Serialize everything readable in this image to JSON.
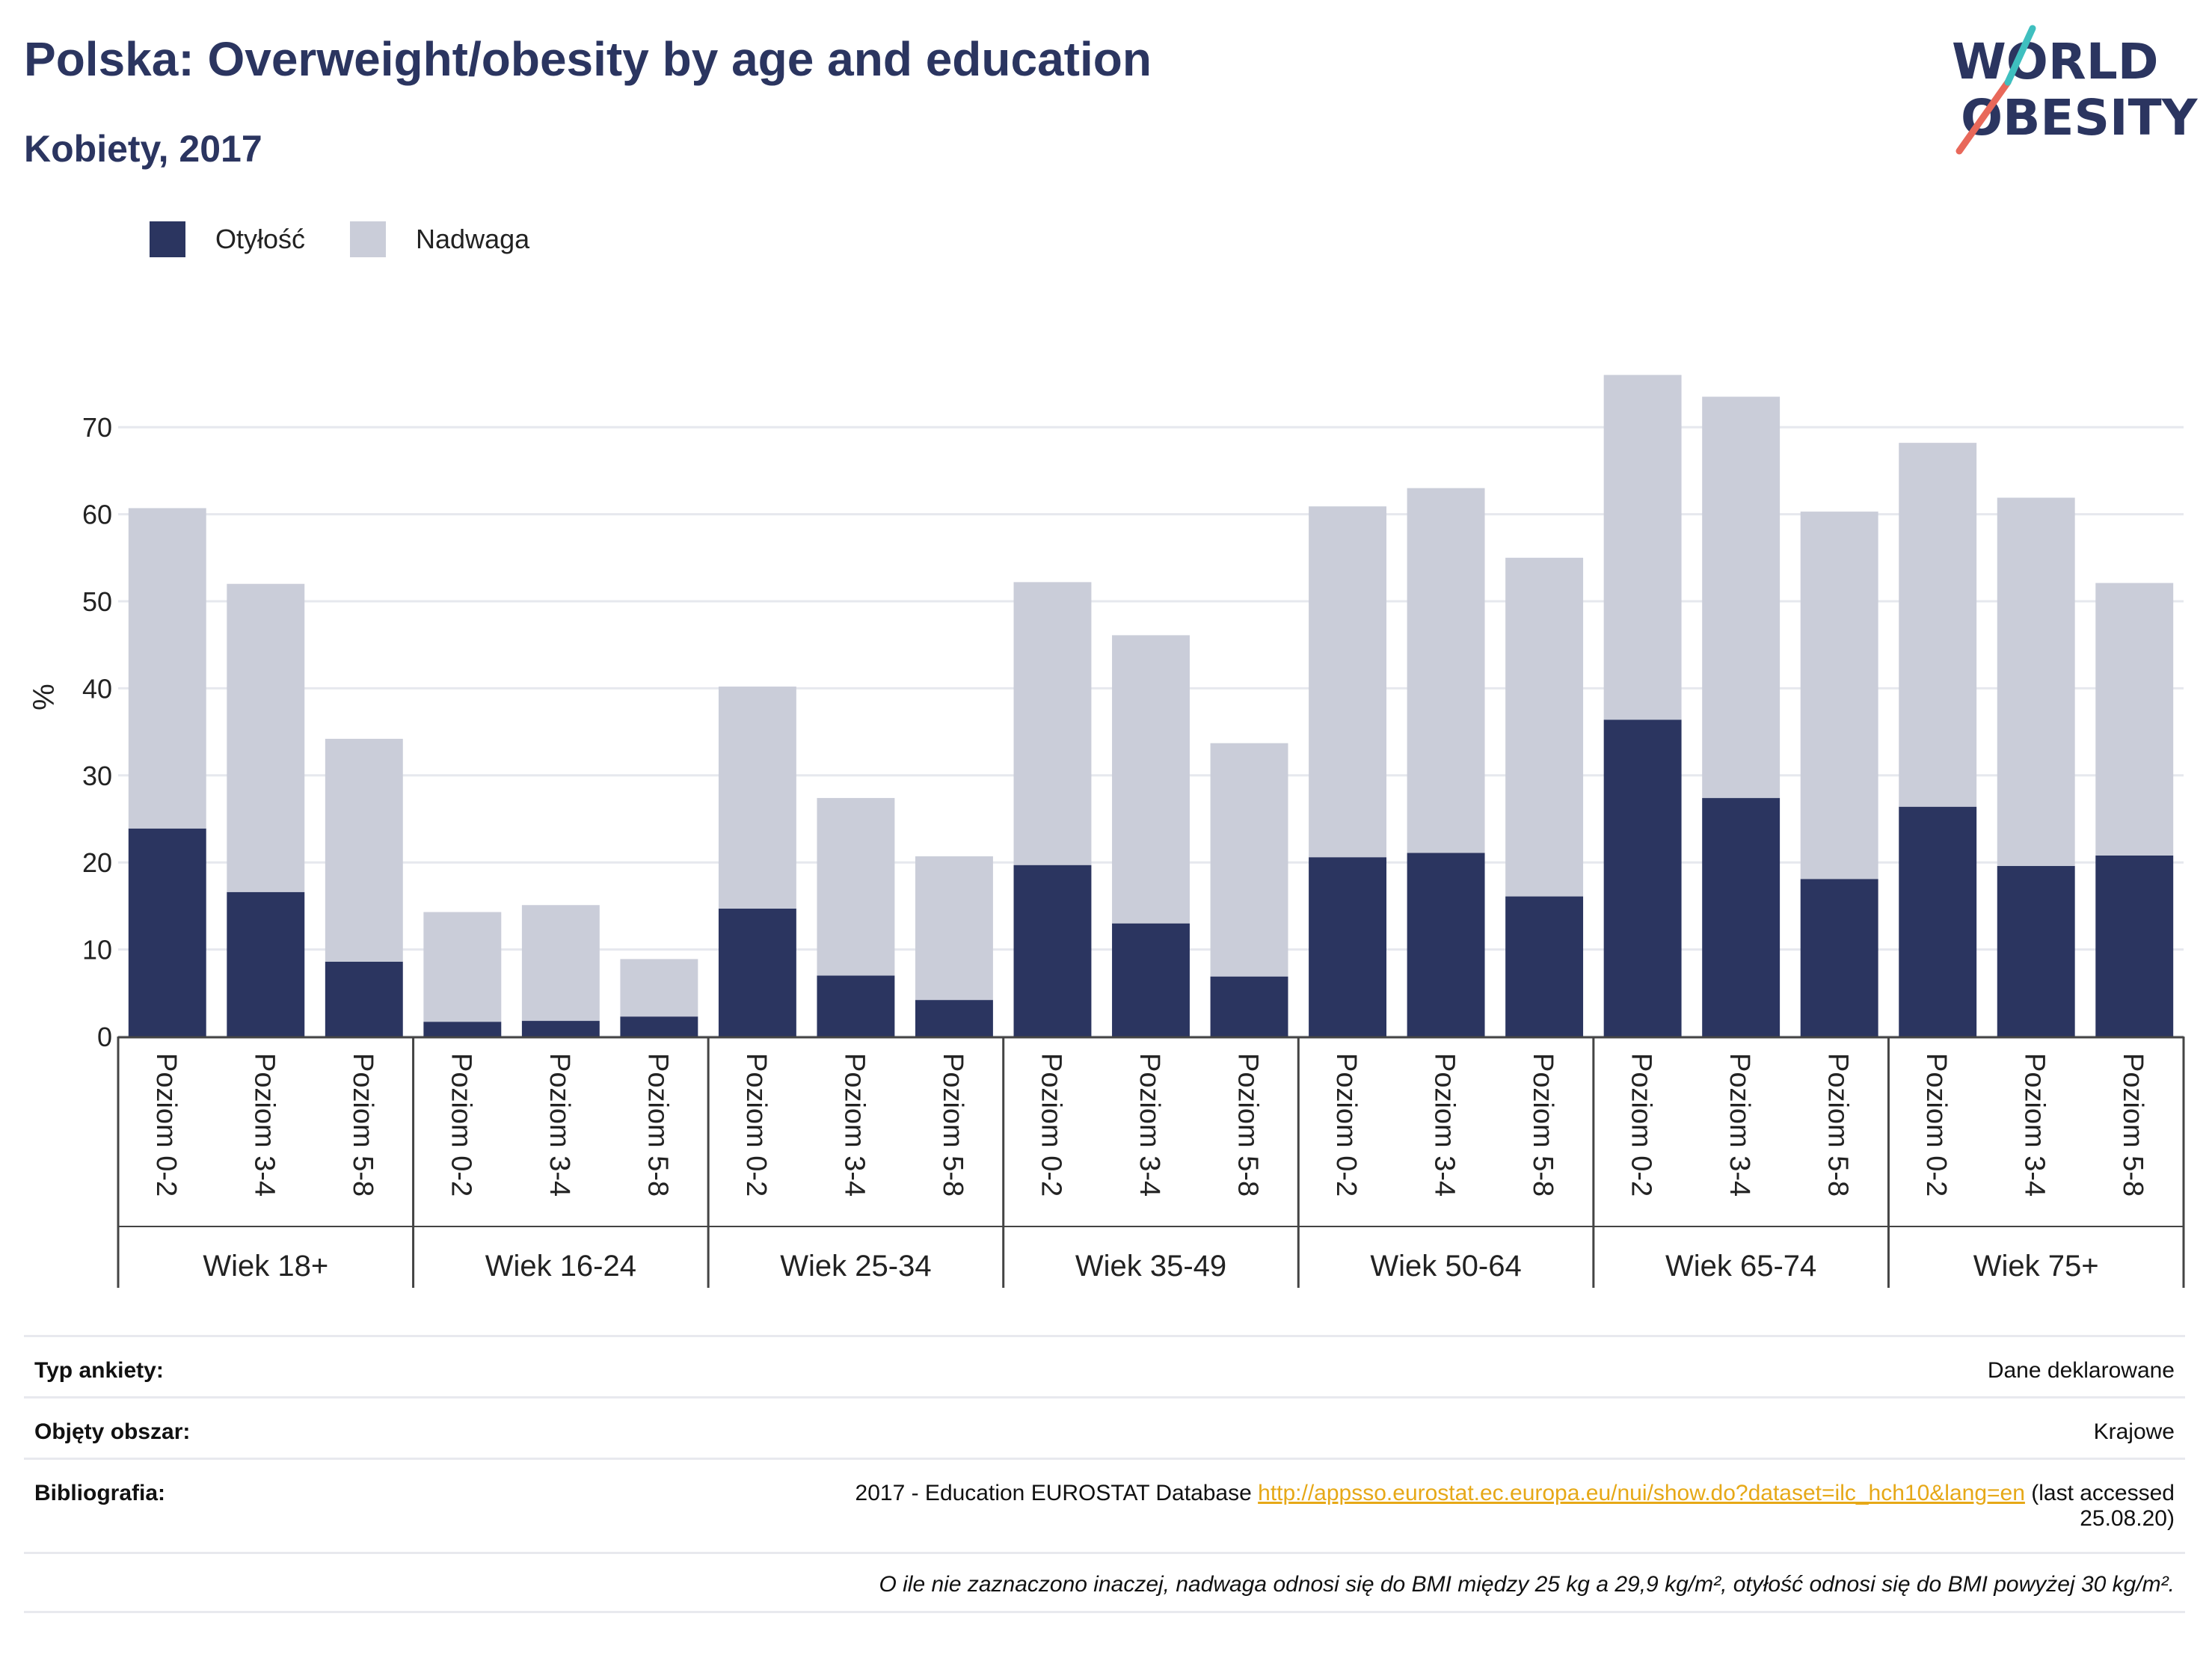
{
  "header": {
    "title": "Polska: Overweight/obesity by age and education",
    "subtitle": "Kobiety, 2017"
  },
  "logo": {
    "line1": "WORLD",
    "line2": "OBESITY"
  },
  "colors": {
    "obesity": "#2b3560",
    "overweight": "#cacdd9",
    "accent_red": "#e8685a",
    "accent_teal": "#3fbfbf"
  },
  "chart_data": {
    "type": "bar",
    "stacked": true,
    "ylabel": "%",
    "xlabel": "",
    "ylim": [
      0,
      78
    ],
    "yticks": [
      0,
      10,
      20,
      30,
      40,
      50,
      60,
      70
    ],
    "grid": true,
    "legend_position": "top-left",
    "legend": [
      "Otyłość",
      "Nadwaga"
    ],
    "groups": [
      "Wiek 18+",
      "Wiek 16-24",
      "Wiek 25-34",
      "Wiek 35-49",
      "Wiek 50-64",
      "Wiek 65-74",
      "Wiek 75+"
    ],
    "subcategories": [
      "Poziom 0-2",
      "Poziom 3-4",
      "Poziom 5-8"
    ],
    "series": [
      {
        "name": "Otyłość",
        "values": [
          23.9,
          16.6,
          8.6,
          1.7,
          1.8,
          2.3,
          14.7,
          7.0,
          4.2,
          19.7,
          13.0,
          6.9,
          20.6,
          21.1,
          16.1,
          36.4,
          27.4,
          18.1,
          26.4,
          19.6,
          20.8
        ]
      },
      {
        "name": "Nadwaga",
        "values": [
          36.8,
          35.4,
          25.6,
          12.6,
          13.3,
          6.6,
          25.5,
          20.4,
          16.5,
          32.5,
          33.1,
          26.8,
          40.3,
          41.9,
          38.9,
          39.6,
          46.1,
          42.2,
          41.8,
          42.3,
          31.3
        ]
      }
    ]
  },
  "footer": {
    "rows": [
      {
        "label": "Typ ankiety:",
        "value": "Dane deklarowane"
      },
      {
        "label": "Objęty obszar:",
        "value": "Krajowe"
      }
    ],
    "bibliography": {
      "label": "Bibliografia:",
      "prefix": "2017 - Education EUROSTAT Database ",
      "url": "http://appsso.eurostat.ec.europa.eu/nui/show.do?dataset=ilc_hch10&lang=en",
      "suffix_line1": " (last accessed",
      "suffix_line2": "25.08.20)"
    },
    "note": "O ile nie zaznaczono inaczej, nadwaga odnosi się do BMI między 25 kg a 29,9 kg/m², otyłość odnosi się do BMI powyżej 30 kg/m²."
  }
}
